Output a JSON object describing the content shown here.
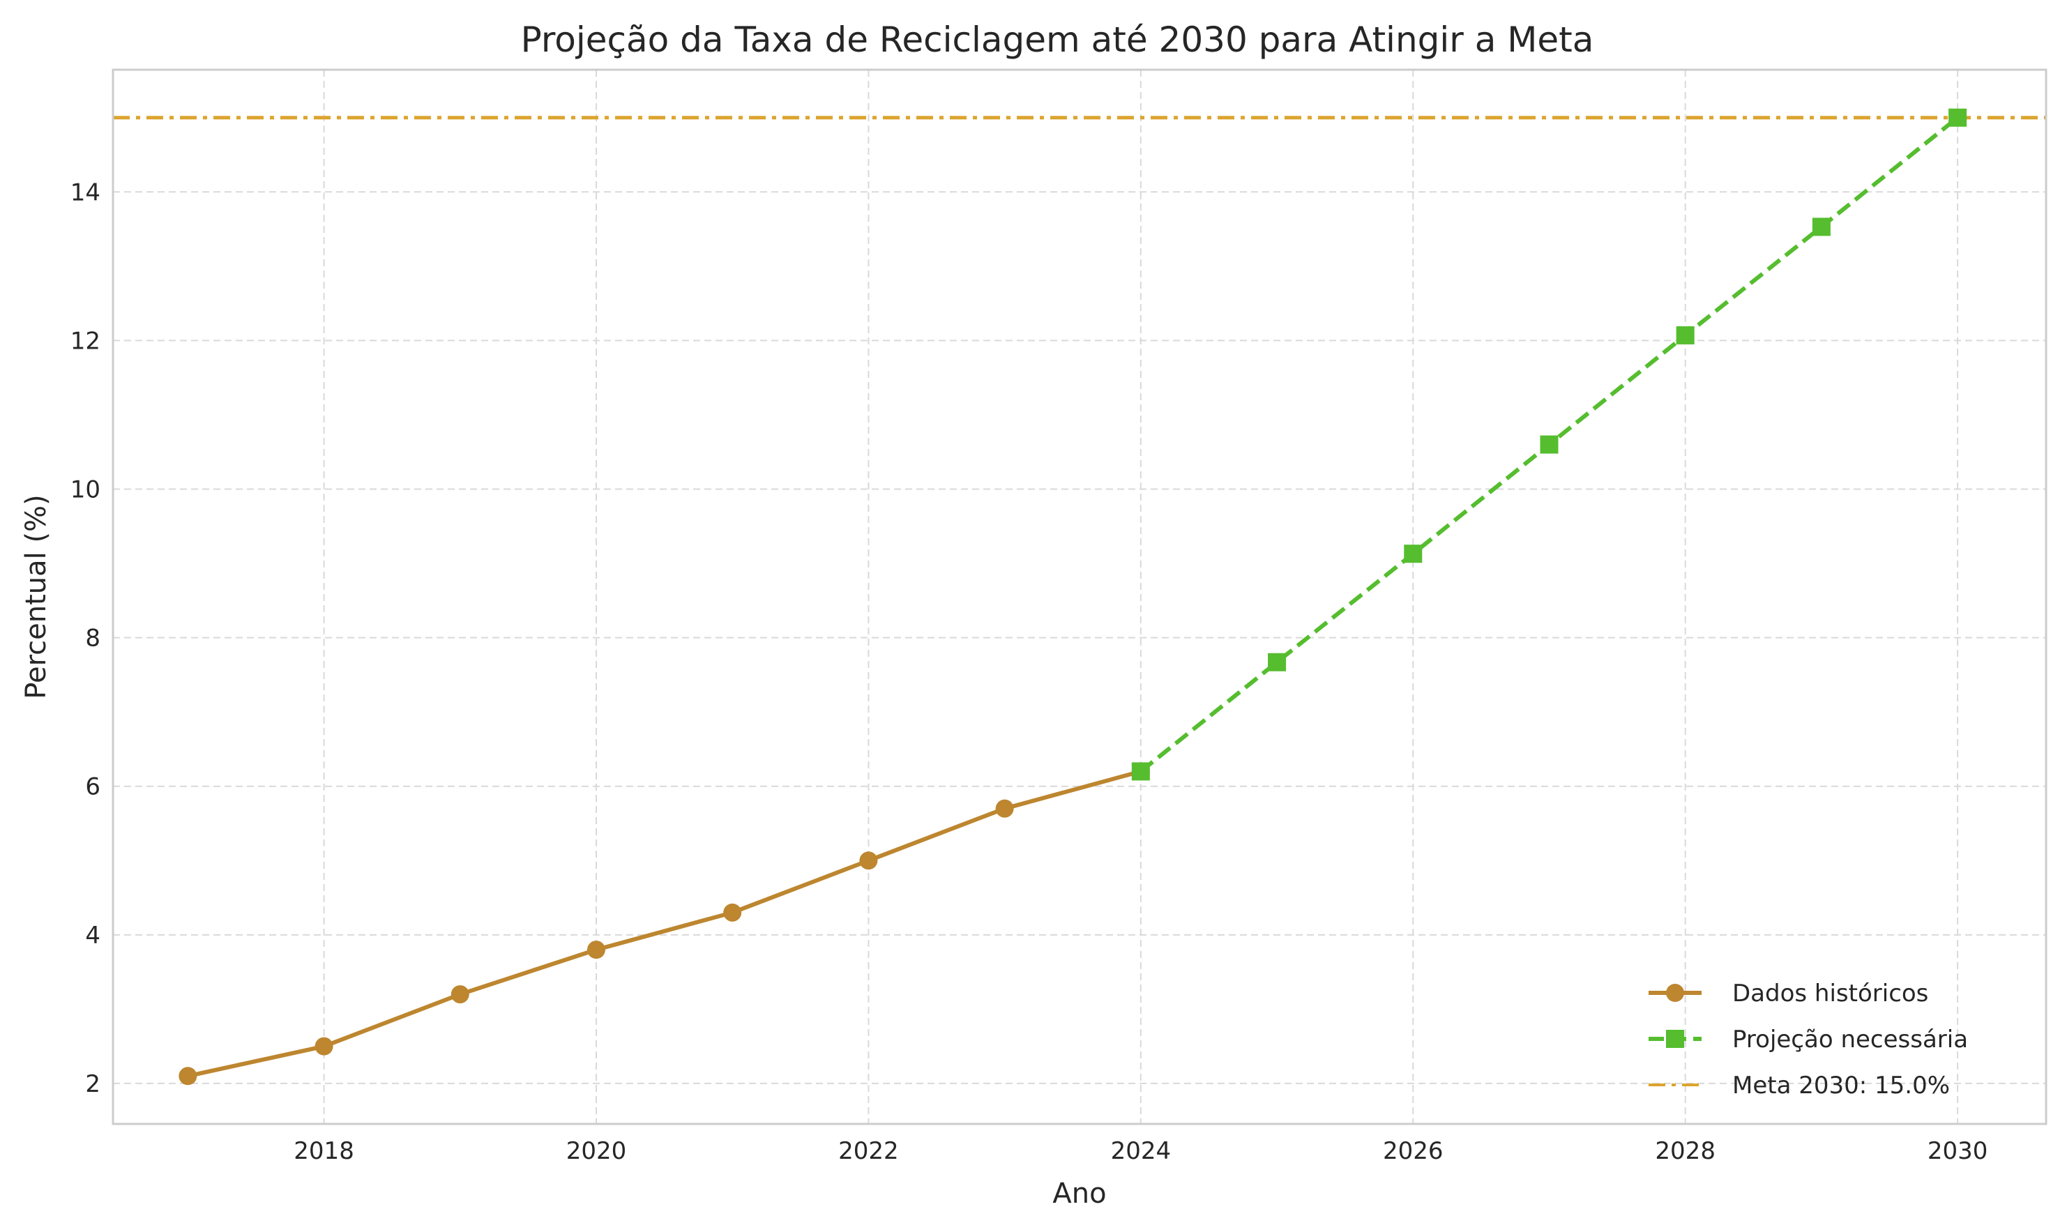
{
  "chart_data": {
    "type": "line",
    "title": "Projeção da Taxa de Reciclagem até 2030 para Atingir a Meta",
    "xlabel": "Ano",
    "ylabel": "Percentual (%)",
    "xlim": [
      2016.45,
      2030.65
    ],
    "ylim": [
      1.455,
      15.645
    ],
    "xticks": [
      2018,
      2020,
      2022,
      2024,
      2026,
      2028,
      2030
    ],
    "yticks": [
      2,
      4,
      6,
      8,
      10,
      12,
      14
    ],
    "grid": true,
    "legend_position": "lower-right",
    "series": [
      {
        "name": "Dados históricos",
        "color": "#bd862f",
        "line_style": "solid",
        "marker": "circle",
        "x": [
          2017,
          2018,
          2019,
          2020,
          2021,
          2022,
          2023,
          2024
        ],
        "y": [
          2.1,
          2.5,
          3.2,
          3.8,
          4.3,
          5.0,
          5.7,
          6.2
        ]
      },
      {
        "name": "Projeção necessária",
        "color": "#55bd2e",
        "line_style": "dashed",
        "marker": "square",
        "x": [
          2024,
          2025,
          2026,
          2027,
          2028,
          2029,
          2030
        ],
        "y": [
          6.2,
          7.67,
          9.13,
          10.6,
          12.07,
          13.53,
          15.0
        ]
      }
    ],
    "reference_lines": [
      {
        "name": "Meta 2030: 15.0%",
        "orientation": "horizontal",
        "y": 15.0,
        "color": "#dca42f",
        "line_style": "dashdot"
      }
    ]
  }
}
